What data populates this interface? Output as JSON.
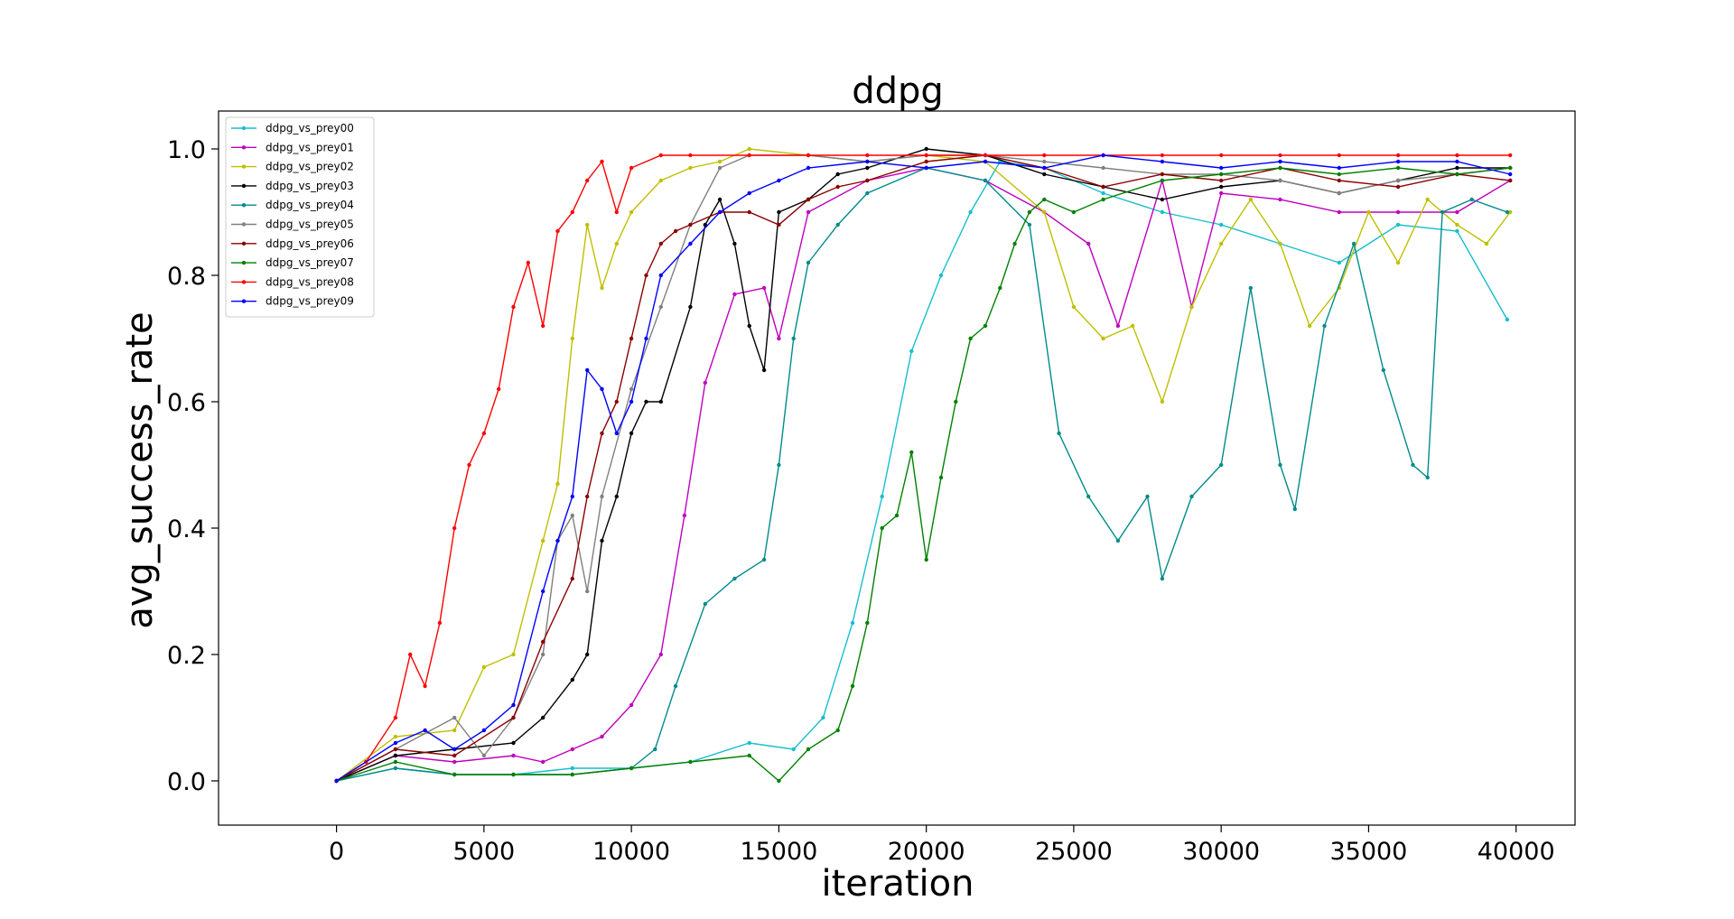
{
  "chart_data": {
    "type": "line",
    "title": "ddpg",
    "xlabel": "iteration",
    "ylabel": "avg_success_rate",
    "xlim": [
      -4000,
      42000
    ],
    "ylim": [
      -0.07,
      1.06
    ],
    "xticks": [
      0,
      5000,
      10000,
      15000,
      20000,
      25000,
      30000,
      35000,
      40000
    ],
    "yticks": [
      0.0,
      0.2,
      0.4,
      0.6,
      0.8,
      1.0
    ],
    "xtick_labels": [
      "0",
      "5000",
      "10000",
      "15000",
      "20000",
      "25000",
      "30000",
      "35000",
      "40000"
    ],
    "ytick_labels": [
      "0.0",
      "0.2",
      "0.4",
      "0.6",
      "0.8",
      "1.0"
    ],
    "grid": false,
    "legend_position": "top-left",
    "series": [
      {
        "name": "ddpg_vs_prey00",
        "color": "#17becf",
        "x": [
          0,
          2000,
          4000,
          6000,
          8000,
          10000,
          12000,
          14000,
          15500,
          16500,
          17500,
          18500,
          19500,
          20500,
          21500,
          22500,
          24000,
          26000,
          28000,
          30000,
          32000,
          34000,
          36000,
          38000,
          39700
        ],
        "values": [
          0.0,
          0.02,
          0.01,
          0.01,
          0.02,
          0.02,
          0.03,
          0.06,
          0.05,
          0.1,
          0.25,
          0.45,
          0.68,
          0.8,
          0.9,
          0.98,
          0.97,
          0.93,
          0.9,
          0.88,
          0.85,
          0.82,
          0.88,
          0.87,
          0.73
        ]
      },
      {
        "name": "ddpg_vs_prey01",
        "color": "#bf00bf",
        "x": [
          0,
          2000,
          4000,
          6000,
          7000,
          8000,
          9000,
          10000,
          11000,
          11800,
          12500,
          13500,
          14500,
          15000,
          16000,
          18000,
          20000,
          22000,
          24000,
          25500,
          26500,
          28000,
          29000,
          30000,
          32000,
          34000,
          36000,
          38000,
          39800
        ],
        "values": [
          0.0,
          0.04,
          0.03,
          0.04,
          0.03,
          0.05,
          0.07,
          0.12,
          0.2,
          0.42,
          0.63,
          0.77,
          0.78,
          0.7,
          0.9,
          0.95,
          0.97,
          0.95,
          0.9,
          0.85,
          0.72,
          0.95,
          0.75,
          0.93,
          0.92,
          0.9,
          0.9,
          0.9,
          0.95
        ]
      },
      {
        "name": "ddpg_vs_prey02",
        "color": "#bfbf00",
        "x": [
          0,
          2000,
          4000,
          5000,
          6000,
          7000,
          7500,
          8000,
          8500,
          9000,
          9500,
          10000,
          11000,
          12000,
          13000,
          14000,
          16000,
          18000,
          20000,
          22000,
          24000,
          25000,
          26000,
          27000,
          28000,
          29000,
          30000,
          31000,
          32000,
          33000,
          34000,
          35000,
          36000,
          37000,
          38000,
          39000,
          39800
        ],
        "values": [
          0.0,
          0.07,
          0.08,
          0.18,
          0.2,
          0.38,
          0.47,
          0.7,
          0.88,
          0.78,
          0.85,
          0.9,
          0.95,
          0.97,
          0.98,
          1.0,
          0.99,
          0.98,
          0.99,
          0.98,
          0.9,
          0.75,
          0.7,
          0.72,
          0.6,
          0.75,
          0.85,
          0.92,
          0.85,
          0.72,
          0.78,
          0.9,
          0.82,
          0.92,
          0.88,
          0.85,
          0.9
        ]
      },
      {
        "name": "ddpg_vs_prey03",
        "color": "#000000",
        "x": [
          0,
          2000,
          4000,
          6000,
          7000,
          8000,
          8500,
          9000,
          9500,
          10000,
          10500,
          11000,
          12000,
          12500,
          13000,
          13500,
          14000,
          14500,
          15000,
          16000,
          17000,
          18000,
          20000,
          22000,
          24000,
          26000,
          28000,
          30000,
          32000,
          34000,
          36000,
          38000,
          39800
        ],
        "values": [
          0.0,
          0.04,
          0.05,
          0.06,
          0.1,
          0.16,
          0.2,
          0.38,
          0.45,
          0.55,
          0.6,
          0.6,
          0.75,
          0.88,
          0.92,
          0.85,
          0.72,
          0.65,
          0.9,
          0.92,
          0.96,
          0.97,
          1.0,
          0.99,
          0.96,
          0.94,
          0.92,
          0.94,
          0.95,
          0.93,
          0.95,
          0.97,
          0.97
        ]
      },
      {
        "name": "ddpg_vs_prey04",
        "color": "#008b8b",
        "x": [
          0,
          2000,
          4000,
          6000,
          8000,
          10000,
          10800,
          11500,
          12500,
          13500,
          14500,
          15000,
          15500,
          16000,
          17000,
          18000,
          20000,
          22000,
          23500,
          24500,
          25500,
          26500,
          27500,
          28000,
          29000,
          30000,
          31000,
          32000,
          32500,
          33500,
          34500,
          35500,
          36500,
          37000,
          37500,
          38500,
          39700
        ],
        "values": [
          0.0,
          0.02,
          0.01,
          0.01,
          0.01,
          0.02,
          0.05,
          0.15,
          0.28,
          0.32,
          0.35,
          0.5,
          0.7,
          0.82,
          0.88,
          0.93,
          0.97,
          0.95,
          0.88,
          0.55,
          0.45,
          0.38,
          0.45,
          0.32,
          0.45,
          0.5,
          0.78,
          0.5,
          0.43,
          0.72,
          0.85,
          0.65,
          0.5,
          0.48,
          0.9,
          0.92,
          0.9
        ]
      },
      {
        "name": "ddpg_vs_prey05",
        "color": "#808080",
        "x": [
          0,
          2000,
          4000,
          5000,
          6000,
          7000,
          7500,
          8000,
          8500,
          9000,
          10000,
          11000,
          12000,
          13000,
          14000,
          16000,
          18000,
          20000,
          22000,
          24000,
          26000,
          28000,
          30000,
          32000,
          34000,
          36000,
          38000,
          39800
        ],
        "values": [
          0.0,
          0.05,
          0.1,
          0.04,
          0.1,
          0.2,
          0.38,
          0.42,
          0.3,
          0.45,
          0.62,
          0.75,
          0.88,
          0.97,
          0.99,
          0.99,
          0.98,
          0.99,
          0.99,
          0.98,
          0.97,
          0.96,
          0.96,
          0.95,
          0.93,
          0.95,
          0.96,
          0.97
        ]
      },
      {
        "name": "ddpg_vs_prey06",
        "color": "#8b0000",
        "x": [
          0,
          2000,
          4000,
          6000,
          7000,
          8000,
          8500,
          9000,
          9500,
          10000,
          10500,
          11000,
          11500,
          12000,
          13000,
          14000,
          15000,
          16000,
          17000,
          18000,
          20000,
          22000,
          24000,
          26000,
          28000,
          30000,
          32000,
          34000,
          36000,
          38000,
          39800
        ],
        "values": [
          0.0,
          0.05,
          0.04,
          0.1,
          0.22,
          0.32,
          0.45,
          0.55,
          0.6,
          0.7,
          0.8,
          0.85,
          0.87,
          0.88,
          0.9,
          0.9,
          0.88,
          0.92,
          0.94,
          0.95,
          0.98,
          0.99,
          0.97,
          0.94,
          0.96,
          0.95,
          0.97,
          0.95,
          0.94,
          0.96,
          0.95
        ]
      },
      {
        "name": "ddpg_vs_prey07",
        "color": "#008000",
        "x": [
          0,
          2000,
          4000,
          6000,
          8000,
          10000,
          12000,
          14000,
          15000,
          16000,
          17000,
          17500,
          18000,
          18500,
          19000,
          19500,
          20000,
          20500,
          21000,
          21500,
          22000,
          22500,
          23000,
          23500,
          24000,
          25000,
          26000,
          28000,
          30000,
          32000,
          34000,
          36000,
          38000,
          39800
        ],
        "values": [
          0.0,
          0.03,
          0.01,
          0.01,
          0.01,
          0.02,
          0.03,
          0.04,
          0.0,
          0.05,
          0.08,
          0.15,
          0.25,
          0.4,
          0.42,
          0.52,
          0.35,
          0.48,
          0.6,
          0.7,
          0.72,
          0.78,
          0.85,
          0.9,
          0.92,
          0.9,
          0.92,
          0.95,
          0.96,
          0.97,
          0.96,
          0.97,
          0.96,
          0.97
        ]
      },
      {
        "name": "ddpg_vs_prey08",
        "color": "#ff0000",
        "x": [
          0,
          1000,
          2000,
          2500,
          3000,
          3500,
          4000,
          4500,
          5000,
          5500,
          6000,
          6500,
          7000,
          7500,
          8000,
          8500,
          9000,
          9500,
          10000,
          11000,
          12000,
          14000,
          16000,
          18000,
          20000,
          22000,
          24000,
          26000,
          28000,
          30000,
          32000,
          34000,
          36000,
          38000,
          39800
        ],
        "values": [
          0.0,
          0.03,
          0.1,
          0.2,
          0.15,
          0.25,
          0.4,
          0.5,
          0.55,
          0.62,
          0.75,
          0.82,
          0.72,
          0.87,
          0.9,
          0.95,
          0.98,
          0.9,
          0.97,
          0.99,
          0.99,
          0.99,
          0.99,
          0.99,
          0.99,
          0.99,
          0.99,
          0.99,
          0.99,
          0.99,
          0.99,
          0.99,
          0.99,
          0.99,
          0.99
        ]
      },
      {
        "name": "ddpg_vs_prey09",
        "color": "#0000ff",
        "x": [
          0,
          2000,
          3000,
          4000,
          5000,
          6000,
          7000,
          7500,
          8000,
          8500,
          9000,
          9500,
          10000,
          10500,
          11000,
          12000,
          13000,
          14000,
          15000,
          16000,
          18000,
          20000,
          22000,
          24000,
          26000,
          28000,
          30000,
          32000,
          34000,
          36000,
          38000,
          39800
        ],
        "values": [
          0.0,
          0.06,
          0.08,
          0.05,
          0.08,
          0.12,
          0.3,
          0.38,
          0.45,
          0.65,
          0.62,
          0.55,
          0.6,
          0.7,
          0.8,
          0.85,
          0.9,
          0.93,
          0.95,
          0.97,
          0.98,
          0.97,
          0.98,
          0.97,
          0.99,
          0.98,
          0.97,
          0.98,
          0.97,
          0.98,
          0.98,
          0.96
        ]
      }
    ]
  }
}
